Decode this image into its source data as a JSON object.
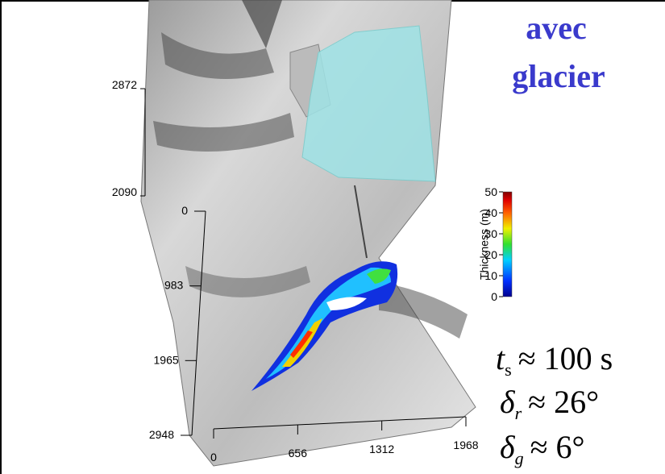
{
  "title": [
    "avec",
    "glacier"
  ],
  "z_axis": {
    "ticks": [
      2090,
      2872
    ]
  },
  "y_axis": {
    "ticks": [
      0,
      983,
      1965,
      2948
    ]
  },
  "x_axis": {
    "ticks": [
      0,
      656,
      1312,
      1968
    ]
  },
  "colorbar": {
    "label": "Thickness (m)",
    "ticks": [
      0,
      10,
      20,
      30,
      40,
      50
    ]
  },
  "equations": [
    {
      "symbol": "t",
      "subscript": "s",
      "rest": "≈ 100 s"
    },
    {
      "symbol": "δ",
      "subscript": "r",
      "rest": "≈ 26°"
    },
    {
      "symbol": "δ",
      "subscript": "g",
      "rest": "≈ 6°"
    }
  ]
}
